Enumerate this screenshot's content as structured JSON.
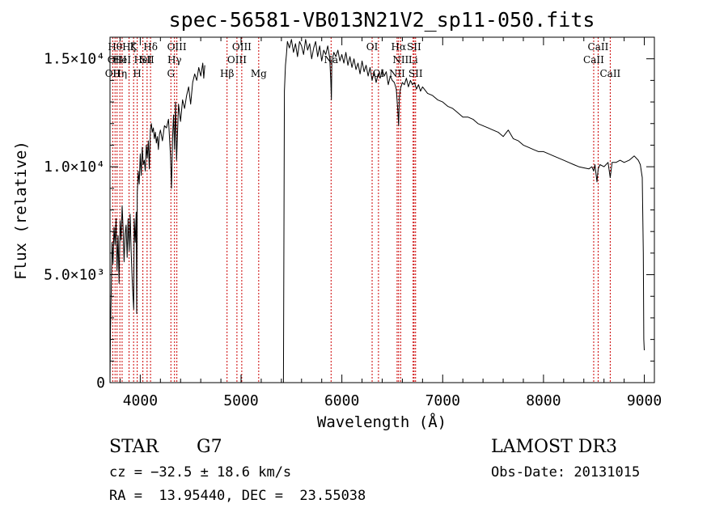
{
  "chart_data": {
    "type": "line",
    "title": "spec-56581-VB013N21V2_sp11-050.fits",
    "xlabel": "Wavelength (Å)",
    "ylabel": "Flux (relative)",
    "xlim": [
      3700,
      9100
    ],
    "ylim": [
      0,
      16000
    ],
    "x_ticks": [
      {
        "value": 4000,
        "label": "4000"
      },
      {
        "value": 5000,
        "label": "5000"
      },
      {
        "value": 6000,
        "label": "6000"
      },
      {
        "value": 7000,
        "label": "7000"
      },
      {
        "value": 8000,
        "label": "8000"
      },
      {
        "value": 9000,
        "label": "9000"
      }
    ],
    "y_ticks": [
      {
        "value": 0,
        "label": "0"
      },
      {
        "value": 5000,
        "label": "5.0×10³"
      },
      {
        "value": 10000,
        "label": "1.0×10⁴"
      },
      {
        "value": 15000,
        "label": "1.5×10⁴"
      }
    ],
    "segments": [
      {
        "x": [
          3700,
          3705,
          3712,
          3720,
          3730,
          3740,
          3750,
          3760,
          3770,
          3780,
          3790,
          3800,
          3810,
          3820,
          3830,
          3840,
          3850,
          3860,
          3870,
          3880,
          3890,
          3900,
          3910,
          3920,
          3930,
          3935,
          3940,
          3950,
          3960,
          3965,
          3970,
          3980,
          3990,
          4000,
          4010,
          4020,
          4030,
          4040,
          4050,
          4060,
          4070,
          4080,
          4090,
          4100,
          4110,
          4120,
          4130,
          4140,
          4150,
          4160,
          4170,
          4180,
          4190,
          4200,
          4220,
          4240,
          4260,
          4280,
          4300,
          4310,
          4320,
          4330,
          4340,
          4350,
          4360,
          4380,
          4400,
          4420,
          4440,
          4460,
          4480,
          4500,
          4520,
          4540,
          4560,
          4580,
          4600,
          4620,
          4630,
          4640
        ],
        "y": [
          0,
          2500,
          4200,
          6500,
          5500,
          7200,
          6400,
          7600,
          5200,
          6800,
          4600,
          7500,
          6600,
          8200,
          7100,
          5600,
          6900,
          7300,
          5800,
          7600,
          6100,
          7800,
          6000,
          4800,
          3800,
          3400,
          7600,
          6500,
          7900,
          3200,
          8800,
          9800,
          9200,
          10600,
          9600,
          10900,
          10100,
          10300,
          9800,
          11000,
          10400,
          11200,
          9900,
          11700,
          12000,
          11600,
          11800,
          11300,
          11600,
          11100,
          11400,
          10800,
          11500,
          11700,
          11200,
          11900,
          11800,
          12200,
          10500,
          9000,
          11300,
          12400,
          10800,
          13000,
          10300,
          12900,
          12100,
          13100,
          12700,
          13300,
          13700,
          12900,
          13900,
          14300,
          14000,
          14600,
          14200,
          14800,
          14100,
          14700
        ]
      },
      {
        "x": [
          4640,
          4660,
          4680
        ],
        "y": [
          0,
          0,
          0
        ]
      },
      {
        "x": [
          5420,
          5430,
          5440,
          5450,
          5460,
          5480,
          5500,
          5520,
          5540,
          5560,
          5580,
          5600,
          5620,
          5640,
          5660,
          5680,
          5700,
          5720,
          5740,
          5760,
          5780,
          5800,
          5820,
          5840,
          5860,
          5880,
          5890,
          5896,
          5900,
          5920,
          5940,
          5960,
          5980,
          6000,
          6020,
          6040,
          6060,
          6080,
          6100,
          6120,
          6140,
          6160,
          6180,
          6200,
          6220,
          6240,
          6260,
          6280,
          6300,
          6320,
          6340,
          6360,
          6380,
          6400,
          6420,
          6440,
          6460,
          6480,
          6500,
          6520,
          6540,
          6555,
          6563,
          6570,
          6580,
          6600,
          6620,
          6640,
          6660,
          6680,
          6700,
          6720,
          6740,
          6760,
          6780,
          6800,
          6850,
          6900,
          6950,
          7000,
          7050,
          7100,
          7150,
          7200,
          7250,
          7300,
          7350,
          7400,
          7450,
          7500,
          7550,
          7600,
          7650,
          7700,
          7750,
          7800,
          7850,
          7900,
          7950,
          8000,
          8050,
          8100,
          8150,
          8200,
          8250,
          8300,
          8350,
          8400,
          8450,
          8480,
          8498,
          8510,
          8530,
          8542,
          8560,
          8600,
          8640,
          8662,
          8680,
          8720,
          8760,
          8800,
          8850,
          8900,
          8940,
          8960,
          8980,
          8990,
          8995,
          9000
        ],
        "y": [
          0,
          13500,
          14700,
          15200,
          15800,
          15500,
          15900,
          15300,
          15700,
          15100,
          15800,
          15600,
          15200,
          15900,
          15400,
          15700,
          15000,
          15500,
          15800,
          15100,
          15600,
          14900,
          15400,
          15200,
          15600,
          15000,
          14000,
          13100,
          14800,
          15300,
          15100,
          15400,
          14900,
          15200,
          14800,
          15300,
          14700,
          15100,
          14600,
          15000,
          14500,
          14800,
          14300,
          14900,
          14400,
          14700,
          14200,
          14600,
          14000,
          14400,
          13900,
          14300,
          14100,
          14500,
          14200,
          14400,
          13800,
          14200,
          14000,
          13900,
          13600,
          12600,
          11900,
          13200,
          13600,
          13900,
          13800,
          14100,
          13700,
          14000,
          13800,
          13900,
          13600,
          13800,
          13500,
          13700,
          13400,
          13300,
          13100,
          13000,
          12800,
          12700,
          12500,
          12300,
          12300,
          12200,
          12000,
          11900,
          11800,
          11700,
          11600,
          11400,
          11700,
          11300,
          11200,
          11000,
          10900,
          10800,
          10700,
          10700,
          10600,
          10500,
          10400,
          10300,
          10200,
          10100,
          10000,
          9950,
          9900,
          10000,
          9800,
          10100,
          9300,
          9900,
          10100,
          10000,
          10200,
          9500,
          10200,
          10200,
          10300,
          10200,
          10300,
          10500,
          10300,
          10100,
          9500,
          6000,
          2000,
          1500
        ]
      }
    ],
    "lines": [
      {
        "x": 3727,
        "label": "OII",
        "row": 3
      },
      {
        "x": 3750,
        "label": "Hθ",
        "row": 1
      },
      {
        "x": 3770,
        "label": "OIII",
        "row": 2
      },
      {
        "x": 3798,
        "label": "Hη",
        "row": 3
      },
      {
        "x": 3820,
        "label": "HeI",
        "row": 2
      },
      {
        "x": 3889,
        "label": "Hζ",
        "row": 1
      },
      {
        "x": 3934,
        "label": "K",
        "row": 1
      },
      {
        "x": 3970,
        "label": "H",
        "row": 3
      },
      {
        "x": 4026,
        "label": "HeI",
        "row": 2
      },
      {
        "x": 4068,
        "label": "SII",
        "row": 2
      },
      {
        "x": 4102,
        "label": "Hδ",
        "row": 1
      },
      {
        "x": 4304,
        "label": "G",
        "row": 3
      },
      {
        "x": 4340,
        "label": "Hγ",
        "row": 2
      },
      {
        "x": 4363,
        "label": "OIII",
        "row": 1
      },
      {
        "x": 4861,
        "label": "Hβ",
        "row": 3
      },
      {
        "x": 4959,
        "label": "OIII",
        "row": 2
      },
      {
        "x": 5007,
        "label": "OIII",
        "row": 1
      },
      {
        "x": 5175,
        "label": "Mg",
        "row": 3
      },
      {
        "x": 5893,
        "label": "Na",
        "row": 2
      },
      {
        "x": 6300,
        "label": "OI",
        "row": 1
      },
      {
        "x": 6363,
        "label": "OI",
        "row": 3
      },
      {
        "x": 6548,
        "label": "NII",
        "row": 3
      },
      {
        "x": 6563,
        "label": "Hα",
        "row": 1
      },
      {
        "x": 6583,
        "label": "NII",
        "row": 2
      },
      {
        "x": 6707,
        "label": "Li",
        "row": 2
      },
      {
        "x": 6716,
        "label": "SII",
        "row": 1
      },
      {
        "x": 6731,
        "label": "SII",
        "row": 3
      },
      {
        "x": 8498,
        "label": "CaII",
        "row": 2
      },
      {
        "x": 8542,
        "label": "CaII",
        "row": 1
      },
      {
        "x": 8662,
        "label": "CaII",
        "row": 3
      }
    ]
  },
  "info": {
    "object_class": "STAR",
    "subclass": "G7",
    "survey": "LAMOST DR3",
    "cz": "cz = −32.5 ± 18.6 km/s",
    "obs_date": "Obs-Date: 20131015",
    "coords": "RA =  13.95440, DEC =  23.55038"
  },
  "colors": {
    "spectrum": "#000000",
    "line_marker": "#cc0000"
  }
}
